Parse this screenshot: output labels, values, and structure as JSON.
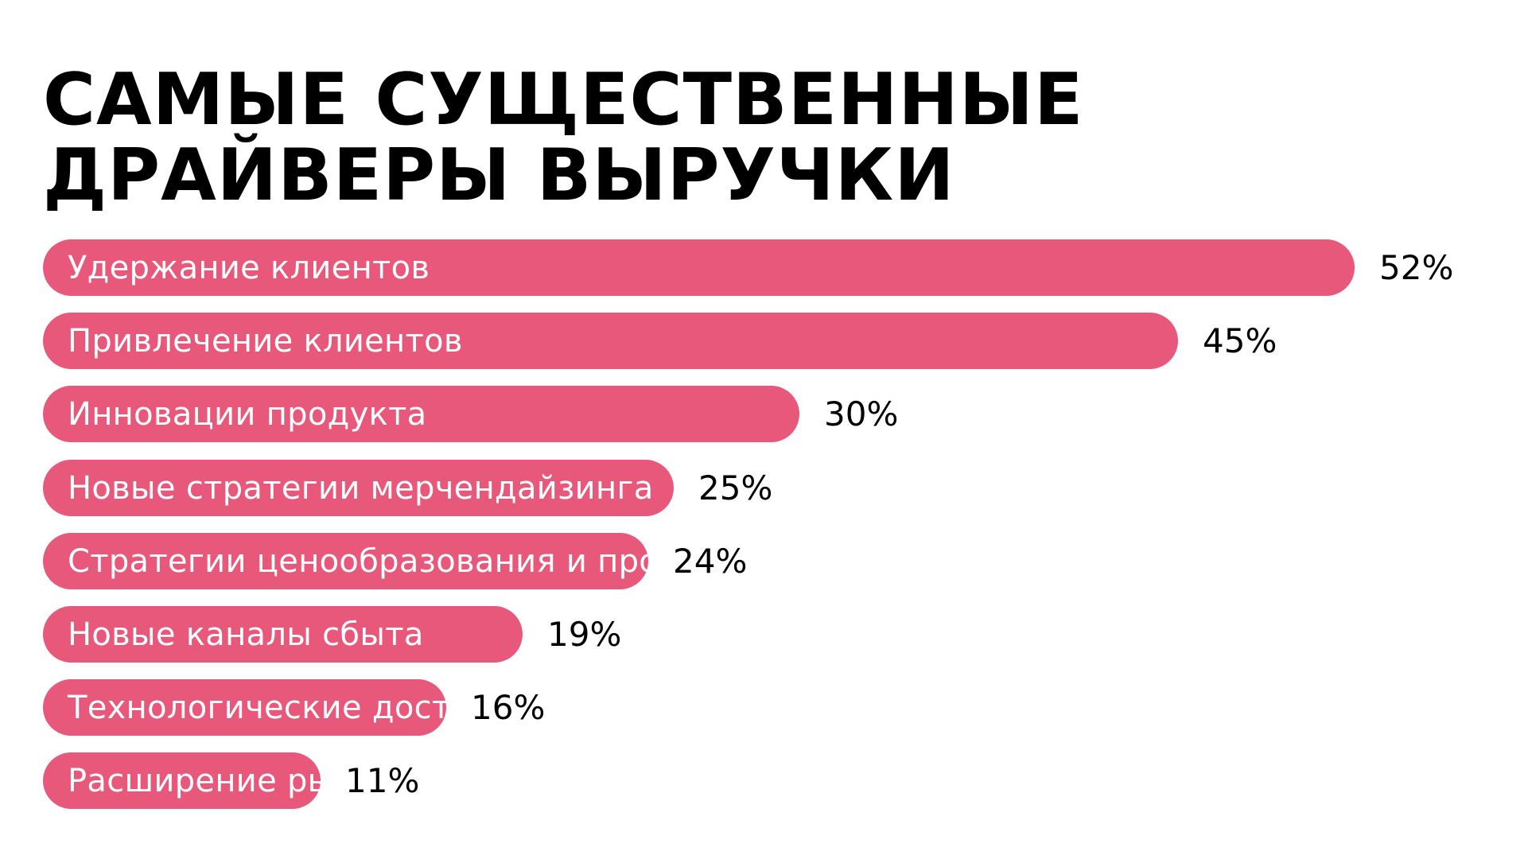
{
  "title": {
    "line1": "САМЫЕ СУЩЕСТВЕННЫЕ",
    "line2": "ДРАЙВЕРЫ ВЫРУЧКИ"
  },
  "colors": {
    "bar": "#E8587A",
    "background": "#FFFFFF",
    "text": "#000000",
    "bar_text": "#FFFFFF"
  },
  "chart_data": {
    "type": "bar",
    "orientation": "horizontal",
    "title": "САМЫЕ СУЩЕСТВЕННЫЕ ДРАЙВЕРЫ ВЫРУЧКИ",
    "categories": [
      "Удержание клиентов",
      "Привлечение клиентов",
      "Инновации продукта",
      "Новые стратегии мерчендайзинга",
      "Стратегии ценообразования и промо-акции",
      "Новые каналы сбыта",
      "Технологические достижения",
      "Расширение рынков сбыта"
    ],
    "values": [
      52,
      45,
      30,
      25,
      24,
      19,
      16,
      11
    ],
    "value_labels": [
      "52%",
      "45%",
      "30%",
      "25%",
      "24%",
      "19%",
      "16%",
      "11%"
    ],
    "unit": "%",
    "xlabel": "",
    "ylabel": "",
    "grid": false,
    "legend": "none"
  }
}
